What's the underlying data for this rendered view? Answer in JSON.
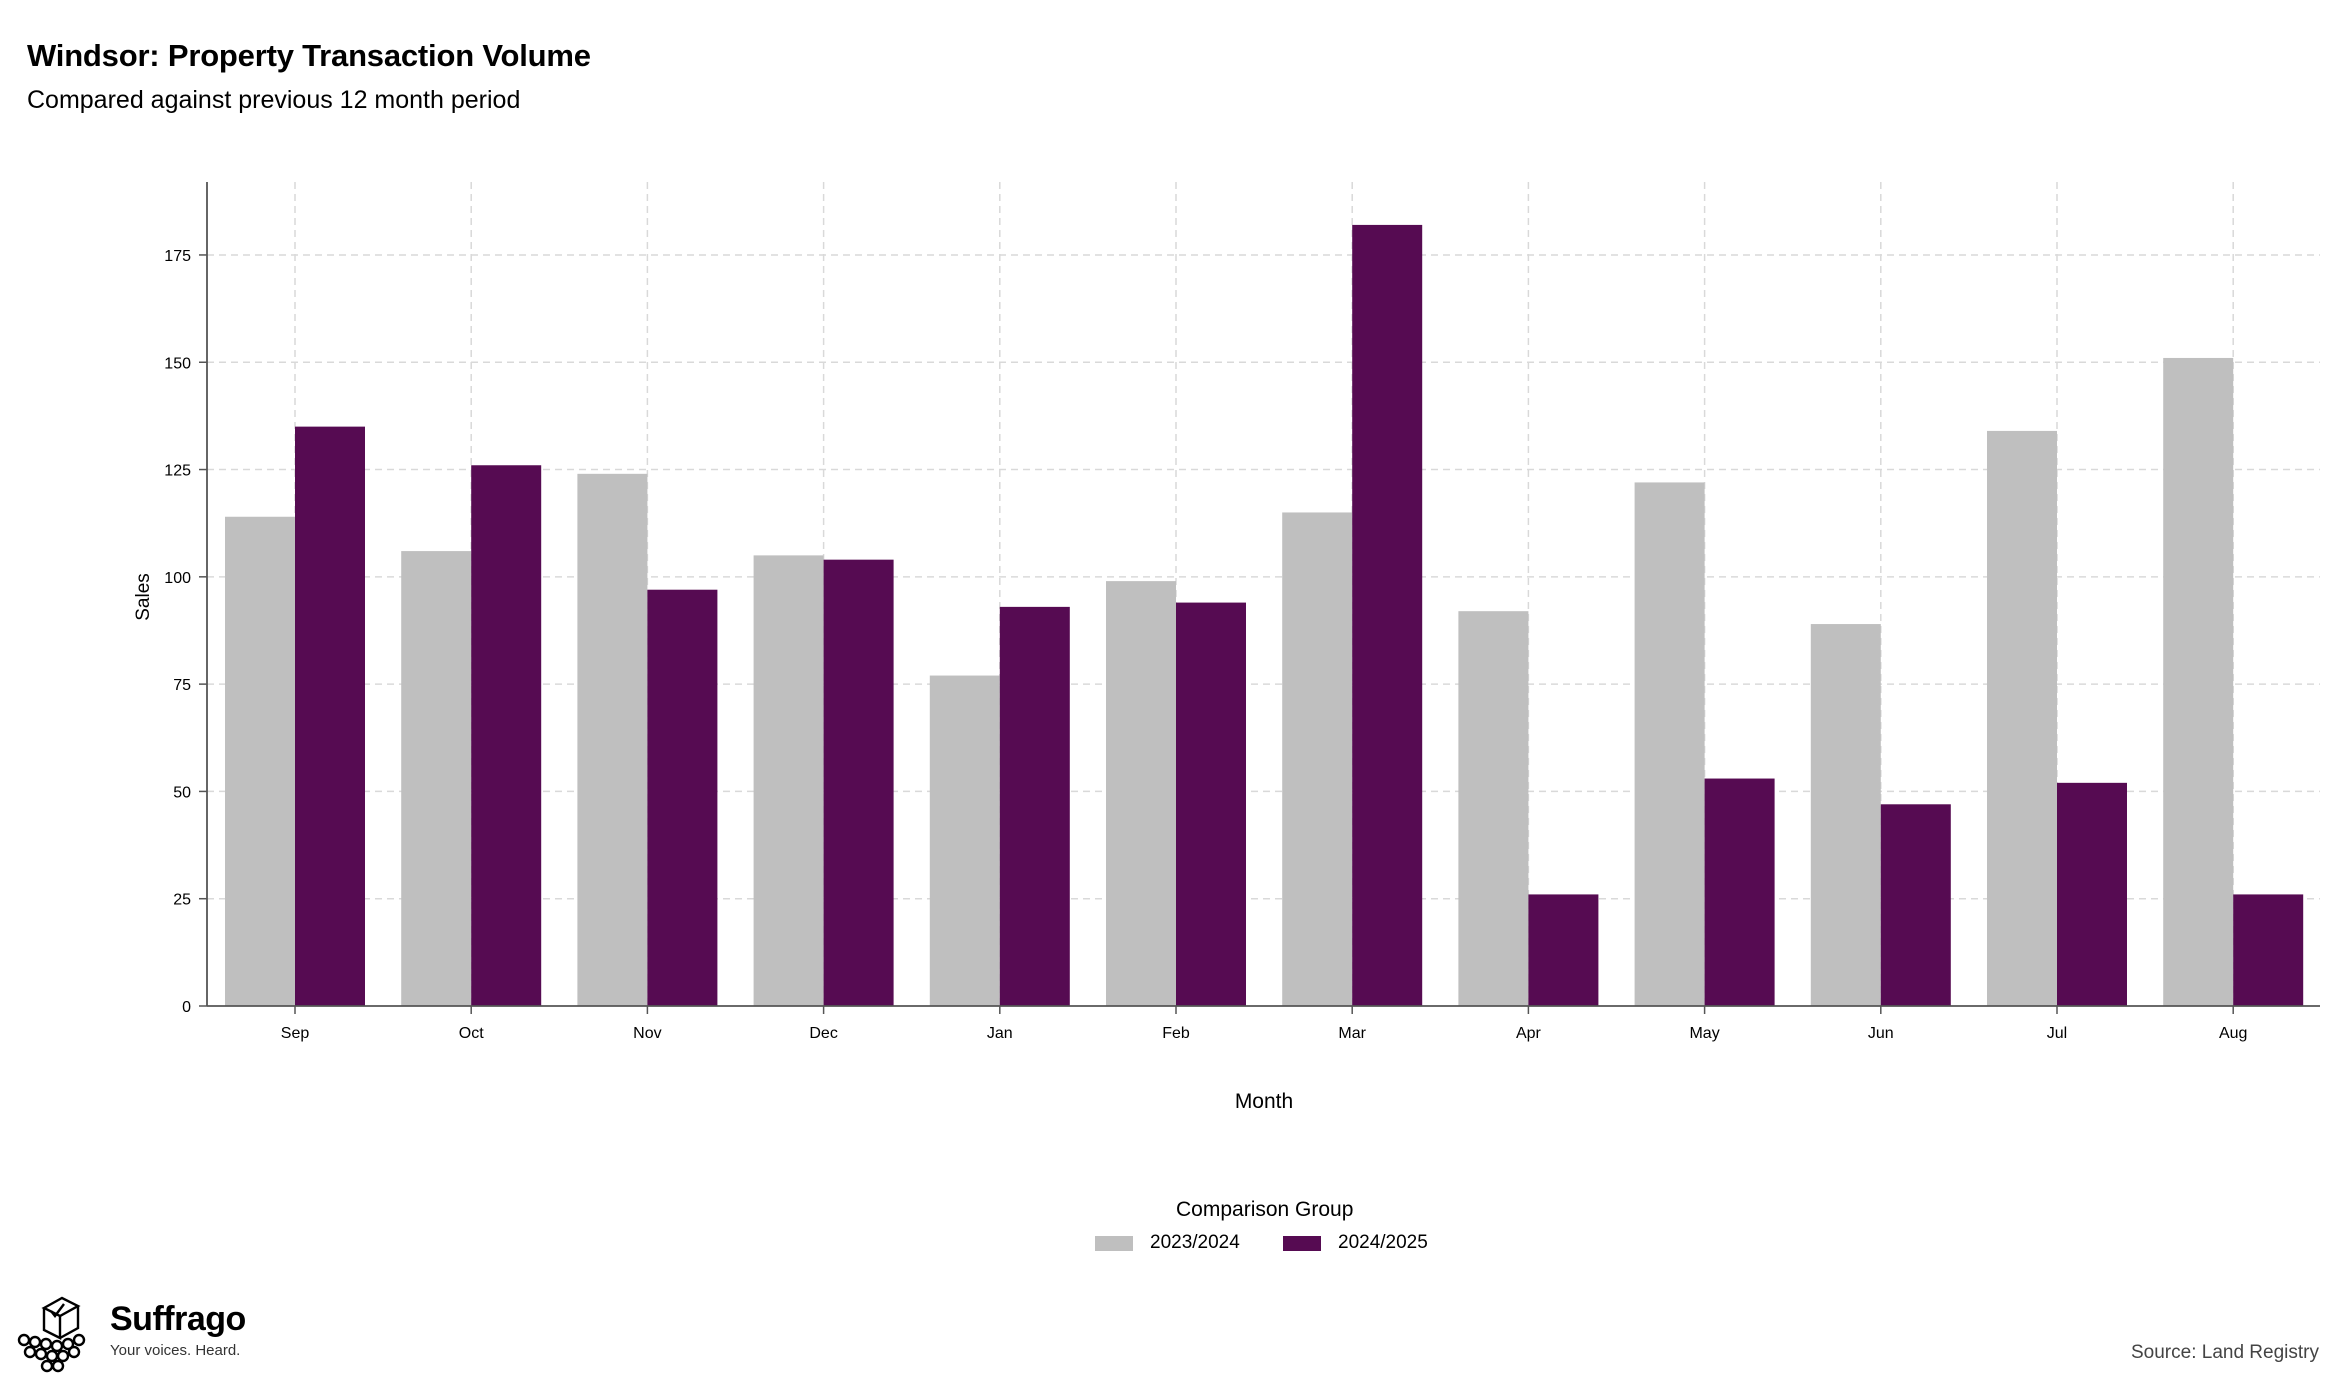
{
  "title": "Windsor: Property Transaction Volume",
  "subtitle": "Compared against previous 12 month period",
  "source": "Source: Land Registry",
  "brand": {
    "name": "Suffrago",
    "tagline": "Your voices. Heard.",
    "icon": "ballot-box-crowd-icon"
  },
  "legend": {
    "title": "Comparison Group"
  },
  "colors": {
    "series_2023_2024": "#bfbfbf",
    "series_2024_2025": "#560b52",
    "grid": "#d9d9d9",
    "axis": "#555555"
  },
  "chart_data": {
    "type": "bar",
    "xlabel": "Month",
    "ylabel": "Sales",
    "ylim": [
      0,
      192
    ],
    "yticks": [
      0,
      25,
      50,
      75,
      100,
      125,
      150,
      175
    ],
    "grid": true,
    "legend_position": "bottom",
    "categories": [
      "Sep",
      "Oct",
      "Nov",
      "Dec",
      "Jan",
      "Feb",
      "Mar",
      "Apr",
      "May",
      "Jun",
      "Jul",
      "Aug"
    ],
    "series": [
      {
        "name": "2023/2024",
        "color": "#bfbfbf",
        "values": [
          114,
          106,
          124,
          105,
          77,
          99,
          115,
          92,
          122,
          89,
          134,
          151
        ]
      },
      {
        "name": "2024/2025",
        "color": "#560b52",
        "values": [
          135,
          126,
          97,
          104,
          93,
          94,
          182,
          26,
          53,
          47,
          52,
          26
        ]
      }
    ]
  }
}
